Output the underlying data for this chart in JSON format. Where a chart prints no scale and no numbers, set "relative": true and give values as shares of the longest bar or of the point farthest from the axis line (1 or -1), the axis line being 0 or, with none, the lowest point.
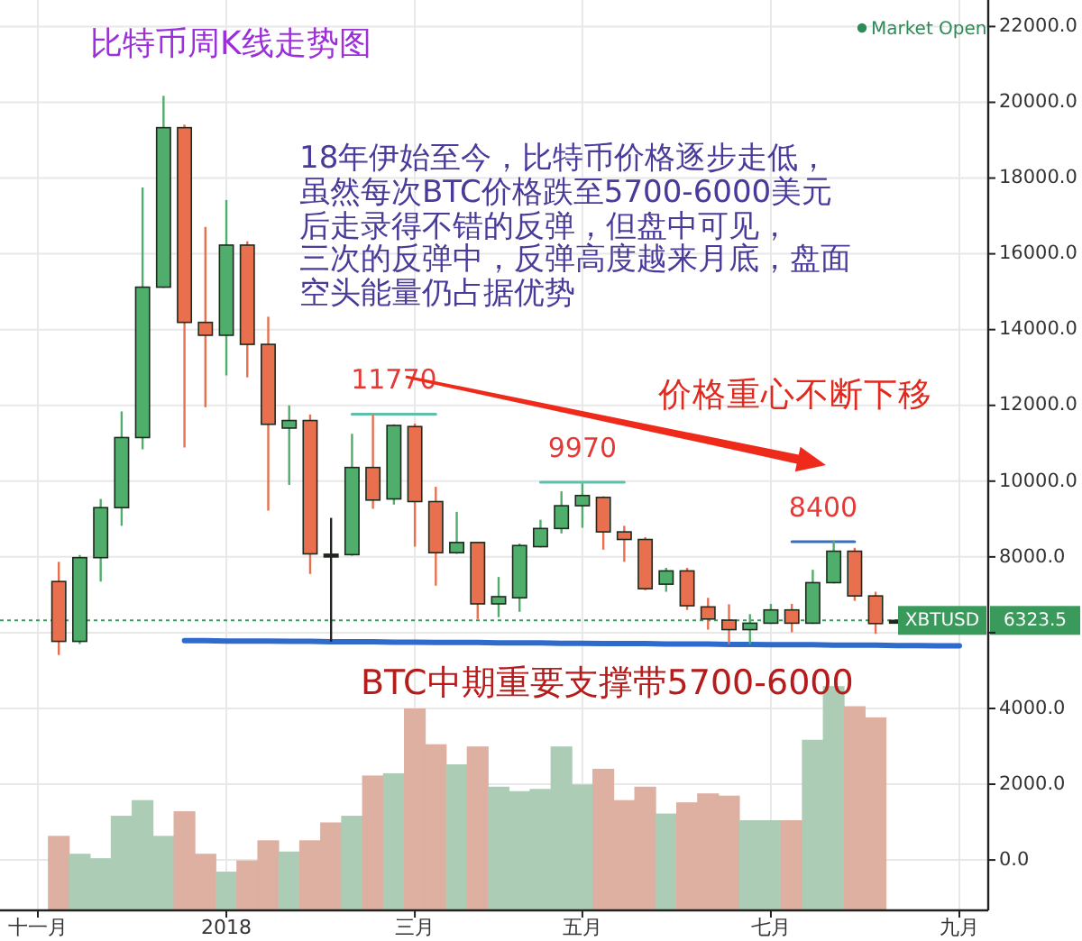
{
  "chart_data": [
    {
      "type": "candlestick",
      "title": "比特币周K线走势图",
      "annotations": [
        "18年伊始至今，比特币价格逐步走低，",
        "虽然每次BTC价格跌至5700-6000美元",
        "后走录得不错的反弹，但盘中可见，",
        "三次的反弹中，反弹高度越来月底，盘面",
        "空头能量仍占据优势",
        "价格重心不断下移",
        "BTC中期重要支撑带5700-6000",
        "Market Open",
        "11770",
        "9970",
        "8400",
        "6323.5"
      ],
      "categories": [
        "十一月",
        null,
        null,
        null,
        null,
        null,
        null,
        null,
        null,
        "2018",
        null,
        null,
        null,
        null,
        null,
        null,
        null,
        null,
        "三月",
        null,
        null,
        null,
        null,
        null,
        null,
        null,
        "五月",
        null,
        null,
        null,
        null,
        null,
        null,
        null,
        null,
        "七月",
        null,
        null,
        null,
        null,
        null,
        null,
        null,
        null,
        "九月"
      ],
      "ohlc": [
        null,
        [
          7350,
          7870,
          5410,
          5770
        ],
        [
          5770,
          8050,
          5700,
          7980
        ],
        [
          7980,
          9530,
          7350,
          9300
        ],
        [
          9300,
          11840,
          8820,
          11150
        ],
        [
          11150,
          17750,
          10840,
          15120
        ],
        [
          15120,
          20170,
          15100,
          19330
        ],
        [
          19330,
          19410,
          10890,
          14190
        ],
        [
          14190,
          16710,
          11950,
          13850
        ],
        [
          13850,
          17420,
          12790,
          16230
        ],
        [
          16230,
          16330,
          12740,
          13610
        ],
        [
          13610,
          14340,
          9220,
          11500
        ],
        [
          11400,
          12000,
          9900,
          11600
        ],
        [
          11600,
          11760,
          7550,
          8080
        ],
        [
          8070,
          9030,
          5760,
          8060
        ],
        [
          8060,
          11250,
          8030,
          10360
        ],
        [
          10360,
          11760,
          9270,
          9500
        ],
        [
          9530,
          11500,
          9380,
          11470
        ],
        [
          11440,
          11520,
          8270,
          9460
        ],
        [
          9460,
          9850,
          7240,
          8110
        ],
        [
          8110,
          9190,
          8080,
          8380
        ],
        [
          8380,
          8400,
          6360,
          6760
        ],
        [
          6760,
          7470,
          6410,
          6950
        ],
        [
          6920,
          8350,
          6550,
          8300
        ],
        [
          8270,
          8980,
          8250,
          8750
        ],
        [
          8750,
          9730,
          8620,
          9350
        ],
        [
          9350,
          9940,
          8770,
          9620
        ],
        [
          9570,
          9600,
          8190,
          8660
        ],
        [
          8660,
          8820,
          7870,
          8460
        ],
        [
          8460,
          8520,
          7120,
          7160
        ],
        [
          7280,
          7710,
          7080,
          7630
        ],
        [
          7630,
          7710,
          6600,
          6710
        ],
        [
          6680,
          6920,
          6080,
          6360
        ],
        [
          6330,
          6750,
          5700,
          6080
        ],
        [
          6080,
          6490,
          5700,
          6250
        ],
        [
          6250,
          6760,
          6230,
          6600
        ],
        [
          6600,
          6760,
          6010,
          6250
        ],
        [
          6250,
          7660,
          6230,
          7320
        ],
        [
          7320,
          8430,
          7300,
          8150
        ],
        [
          8150,
          8240,
          6840,
          6970
        ],
        [
          6970,
          7080,
          5970,
          6240
        ],
        [
          6300,
          6340,
          6280,
          6323.5
        ],
        null,
        null,
        null
      ],
      "colors": [
        null,
        "#e8704f",
        "#4fae6b",
        "#4fae6b",
        "#4fae6b",
        "#4fae6b",
        "#4fae6b",
        "#e8704f",
        "#e8704f",
        "#4fae6b",
        "#e8704f",
        "#e8704f",
        "#4fae6b",
        "#e8704f",
        "#222222",
        "#4fae6b",
        "#e8704f",
        "#4fae6b",
        "#e8704f",
        "#e8704f",
        "#4fae6b",
        "#e8704f",
        "#4fae6b",
        "#4fae6b",
        "#4fae6b",
        "#4fae6b",
        "#4fae6b",
        "#e8704f",
        "#e8704f",
        "#e8704f",
        "#4fae6b",
        "#e8704f",
        "#e8704f",
        "#e8704f",
        "#4fae6b",
        "#4fae6b",
        "#e8704f",
        "#4fae6b",
        "#4fae6b",
        "#e8704f",
        "#e8704f",
        "#222222",
        null,
        null,
        null
      ],
      "series": [
        {
          "type": "line",
          "color": "#5fbfaa",
          "values": [
            null,
            null,
            null,
            null,
            null,
            null,
            null,
            null,
            null,
            null,
            null,
            null,
            null,
            null,
            null,
            11770,
            11770,
            11770,
            11770,
            11770,
            null,
            null,
            null,
            null,
            null,
            null,
            null,
            null,
            null,
            null,
            null,
            null,
            null,
            null,
            null,
            null,
            null,
            null,
            null,
            null,
            null,
            null,
            null,
            null,
            null
          ]
        },
        {
          "type": "line",
          "color": "#5fbfaa",
          "values": [
            null,
            null,
            null,
            null,
            null,
            null,
            null,
            null,
            null,
            null,
            null,
            null,
            null,
            null,
            null,
            null,
            null,
            null,
            null,
            null,
            null,
            null,
            null,
            null,
            9970,
            9970,
            9970,
            9970,
            9970,
            null,
            null,
            null,
            null,
            null,
            null,
            null,
            null,
            null,
            null,
            null,
            null,
            null,
            null,
            null,
            null
          ]
        },
        {
          "type": "line",
          "color": "#3a6fc0",
          "values": [
            null,
            null,
            null,
            null,
            null,
            null,
            null,
            null,
            null,
            null,
            null,
            null,
            null,
            null,
            null,
            null,
            null,
            null,
            null,
            null,
            null,
            null,
            null,
            null,
            null,
            null,
            null,
            null,
            null,
            null,
            null,
            null,
            null,
            null,
            null,
            null,
            8400,
            8400,
            8400,
            8400,
            null,
            null,
            null,
            null,
            null
          ]
        },
        {
          "type": "line",
          "color": "#2f6bcc",
          "values": [
            null,
            null,
            null,
            null,
            null,
            null,
            null,
            5790,
            5790,
            5780,
            5780,
            5780,
            5770,
            5770,
            5760,
            5760,
            5760,
            5750,
            5750,
            5740,
            5740,
            5740,
            5730,
            5730,
            5730,
            5720,
            5720,
            5710,
            5710,
            5710,
            5700,
            5700,
            5700,
            5690,
            5690,
            5680,
            5680,
            5680,
            5670,
            5670,
            5670,
            5660,
            5660,
            5650,
            5650
          ]
        }
      ],
      "ref_lines": [
        {
          "axis": "y",
          "value": 6323.5,
          "label": "XBTUSD",
          "color": "#3a9a5c",
          "line_style": "dotted"
        }
      ],
      "ylim": [
        -1330,
        22700
      ],
      "yticks": [
        {
          "value": 0,
          "label": "0.0"
        },
        {
          "value": 2000,
          "label": "2000.0"
        },
        {
          "value": 4000,
          "label": "4000.0"
        },
        {
          "value": 6000,
          "label": null
        },
        {
          "value": 8000,
          "label": "8000.0"
        },
        {
          "value": 10000,
          "label": "10000.0"
        },
        {
          "value": 12000,
          "label": "12000.0"
        },
        {
          "value": 14000,
          "label": "14000.0"
        },
        {
          "value": 16000,
          "label": "16000.0"
        },
        {
          "value": 18000,
          "label": "18000.0"
        },
        {
          "value": 20000,
          "label": "20000.0"
        },
        {
          "value": 22000,
          "label": "22000.0"
        }
      ],
      "grid": true
    },
    {
      "type": "bar",
      "relative": true,
      "categories": [
        null,
        null,
        null,
        null,
        null,
        null,
        null,
        null,
        null,
        null,
        null,
        null,
        null,
        null,
        null,
        null,
        null,
        null,
        null,
        null,
        null,
        null,
        null,
        null,
        null,
        null,
        null,
        null,
        null,
        null,
        null,
        null,
        null,
        null,
        null,
        null,
        null,
        null,
        null,
        null,
        null,
        null,
        null,
        null,
        null
      ],
      "values": [
        null,
        0.33,
        0.25,
        0.23,
        0.42,
        0.49,
        0.33,
        0.44,
        0.25,
        0.17,
        0.22,
        0.31,
        0.26,
        0.31,
        0.39,
        0.42,
        0.6,
        0.61,
        0.9,
        0.74,
        0.65,
        0.73,
        0.55,
        0.53,
        0.54,
        0.73,
        0.56,
        0.63,
        0.49,
        0.55,
        0.43,
        0.48,
        0.52,
        0.51,
        0.4,
        0.4,
        0.4,
        0.76,
        1,
        0.91,
        0.86,
        null,
        null,
        null,
        null
      ],
      "colors": [
        null,
        "#f5c3b3",
        "#bfe3c9",
        "#bfe3c9",
        "#bfe3c9",
        "#bfe3c9",
        "#bfe3c9",
        "#f5c3b3",
        "#f5c3b3",
        "#bfe3c9",
        "#f5c3b3",
        "#f5c3b3",
        "#bfe3c9",
        "#f5c3b3",
        "#f5c3b3",
        "#bfe3c9",
        "#f5c3b3",
        "#bfe3c9",
        "#f5c3b3",
        "#f5c3b3",
        "#bfe3c9",
        "#f5c3b3",
        "#bfe3c9",
        "#bfe3c9",
        "#bfe3c9",
        "#bfe3c9",
        "#bfe3c9",
        "#f5c3b3",
        "#f5c3b3",
        "#f5c3b3",
        "#bfe3c9",
        "#f5c3b3",
        "#f5c3b3",
        "#f5c3b3",
        "#bfe3c9",
        "#bfe3c9",
        "#f5c3b3",
        "#bfe3c9",
        "#bfe3c9",
        "#f5c3b3",
        "#f5c3b3",
        null,
        null,
        null,
        null
      ]
    }
  ]
}
